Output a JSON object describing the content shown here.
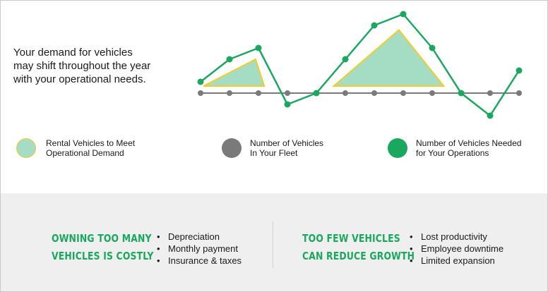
{
  "intro_text": "Your demand for vehicles may shift throughout the year with your operational needs.",
  "colors": {
    "green": "#1aa85e",
    "gray": "#7a7a7a",
    "mint": "#a5dcc4",
    "yellow": "#f2cd2a",
    "heading_green": "#1aa85e",
    "panel_bg": "#efefef"
  },
  "chart_data": {
    "type": "line",
    "points": 12,
    "series": [
      {
        "name": "Number of Vehicles In Your Fleet",
        "values": [
          0,
          0,
          0,
          0,
          0,
          0,
          0,
          0,
          0,
          0,
          0,
          0
        ]
      },
      {
        "name": "Number of Vehicles Needed for Your Operations",
        "values": [
          0.5,
          1.5,
          2,
          -0.5,
          0,
          1.5,
          3,
          3.5,
          2,
          0,
          -1,
          1
        ]
      }
    ],
    "rental_areas": [
      {
        "start": 0.1,
        "peak": 1.9,
        "peak_value": 1.5,
        "end": 2.2
      },
      {
        "start": 4.6,
        "peak": 6.85,
        "peak_value": 2.8,
        "end": 8.4
      }
    ]
  },
  "legend": [
    {
      "name": "rental",
      "label": "Rental Vehicles to Meet\nOperational Demand"
    },
    {
      "name": "fleet",
      "label": "Number of Vehicles\nIn Your Fleet"
    },
    {
      "name": "needed",
      "label": "Number of Vehicles Needed\nfor Your Operations"
    }
  ],
  "left_panel": {
    "heading": "OWNING TOO MANY\nVEHICLES IS COSTLY",
    "items": [
      "Depreciation",
      "Monthly payment",
      "Insurance & taxes"
    ]
  },
  "right_panel": {
    "heading": "TOO FEW VEHICLES\nCAN REDUCE GROWTH",
    "items": [
      "Lost productivity",
      "Employee downtime",
      "Limited expansion"
    ]
  }
}
